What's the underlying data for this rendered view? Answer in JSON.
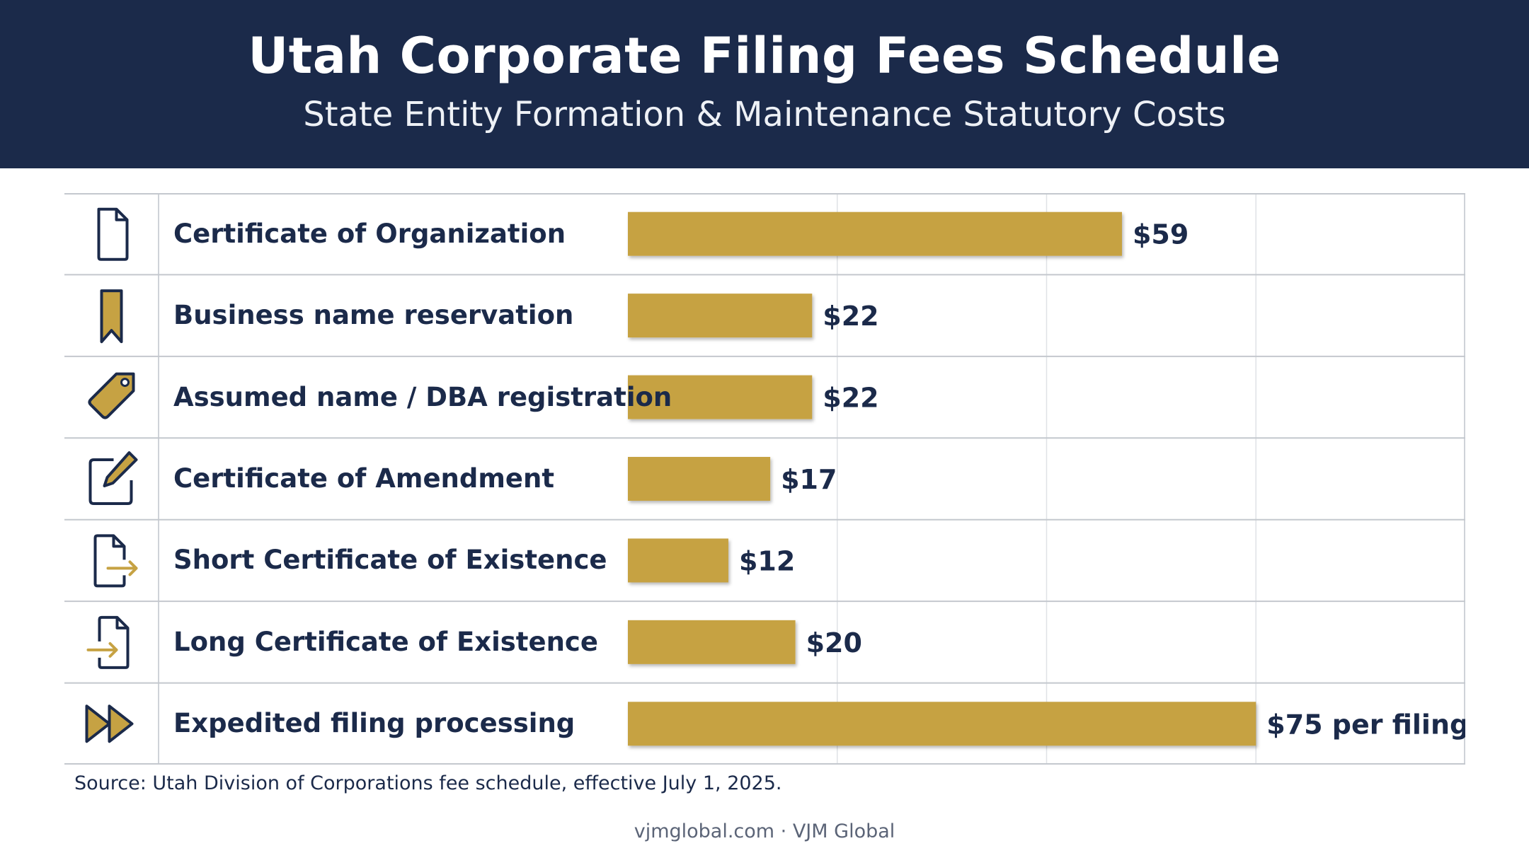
{
  "header": {
    "title": "Utah Corporate Filing Fees Schedule",
    "subtitle": "State Entity Formation & Maintenance Statutory Costs"
  },
  "chart_data": {
    "type": "bar",
    "orientation": "horizontal",
    "categories": [
      "Certificate of Organization",
      "Business name reservation",
      "Assumed name / DBA registration",
      "Certificate of Amendment",
      "Short Certificate of Existence",
      "Long Certificate of Existence",
      "Expedited filing processing"
    ],
    "values": [
      59,
      22,
      22,
      17,
      12,
      20,
      75
    ],
    "value_labels": [
      "$59",
      "$22",
      "$22",
      "$17",
      "$12",
      "$20",
      "$75 per filing"
    ],
    "icons": [
      "document-icon",
      "bookmark-icon",
      "tag-icon",
      "edit-icon",
      "file-export-icon",
      "file-import-icon",
      "fast-forward-icon"
    ],
    "xlim": [
      0,
      100
    ],
    "grid": true,
    "bar_color": "#c6a243",
    "label_color": "#1b2a4a"
  },
  "source": "Source: Utah Division of Corporations fee schedule, effective July 1, 2025.",
  "footer": "vjmglobal.com · VJM Global"
}
